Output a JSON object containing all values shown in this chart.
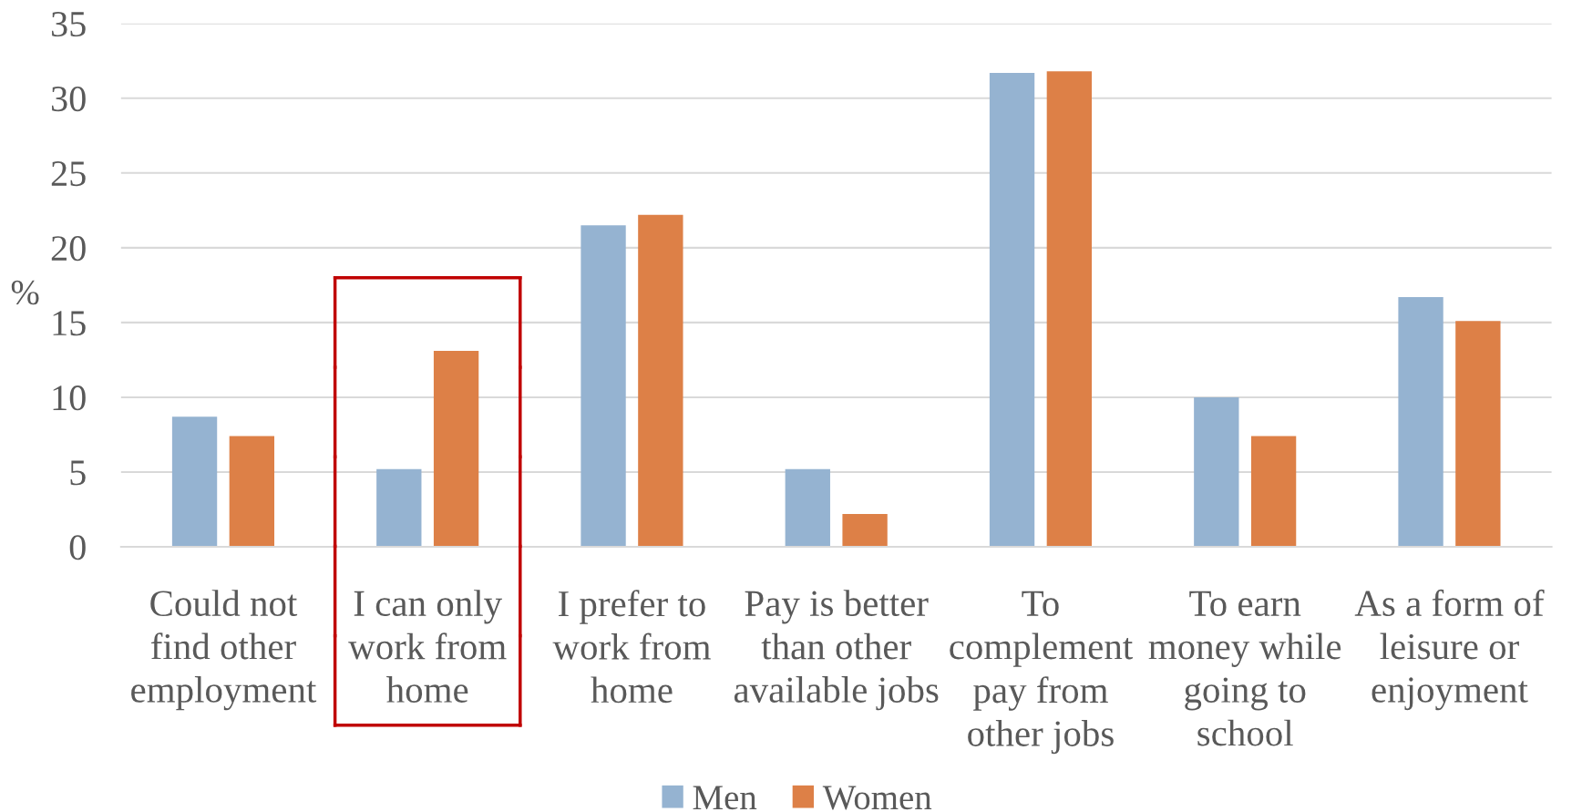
{
  "chart_data": {
    "type": "bar",
    "categories": [
      "Could not\nfind other\nemployment",
      "I can only\nwork from\nhome",
      "I prefer to\nwork from\nhome",
      "Pay is better\nthan other\navailable jobs",
      "To\ncomplement\npay from\nother jobs",
      "To earn\nmoney while\ngoing to\nschool",
      "As a form of\nleisure or\nenjoyment"
    ],
    "series": [
      {
        "name": "Men",
        "color": "#95b3d1",
        "values": [
          8.7,
          5.2,
          21.5,
          5.2,
          31.7,
          10.0,
          16.7
        ]
      },
      {
        "name": "Women",
        "color": "#dd8047",
        "values": [
          7.4,
          13.1,
          22.2,
          2.2,
          31.8,
          7.4,
          15.1
        ]
      }
    ],
    "ylabel": "%",
    "ylim": [
      0,
      35
    ],
    "yticks": [
      0,
      5,
      10,
      15,
      20,
      25,
      30,
      35
    ],
    "grid": "y",
    "legend": "bottom"
  }
}
